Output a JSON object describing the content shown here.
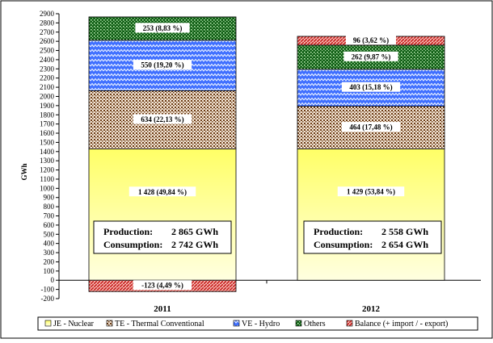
{
  "chart_data": {
    "type": "bar",
    "stacked": true,
    "ylabel": "GWh",
    "ylim": [
      -200,
      2900
    ],
    "ytick_step": 100,
    "grid": false,
    "legend_position": "bottom",
    "categories": [
      "2011",
      "2012"
    ],
    "series": [
      {
        "name": "JE - Nuclear",
        "values": [
          1428,
          1429
        ],
        "color": "#ffff99",
        "pattern": "solid-yellow",
        "labels": [
          "1 428 (49,84 %)",
          "1 429 (53,84 %)"
        ]
      },
      {
        "name": "TE - Thermal Conventional",
        "values": [
          634,
          464
        ],
        "color": "#8b5a2b",
        "pattern": "brown-dots",
        "labels": [
          "634 (22,13 %)",
          "464 (17,48 %)"
        ]
      },
      {
        "name": "VE - Hydro",
        "values": [
          550,
          403
        ],
        "color": "#3366ff",
        "pattern": "blue-zigzag",
        "labels": [
          "550 (19,20 %)",
          "403 (15,18 %)"
        ]
      },
      {
        "name": "Others",
        "values": [
          253,
          262
        ],
        "color": "#1a7a1a",
        "pattern": "green-dots",
        "labels": [
          "253 (8,83 %)",
          "262 (9,87 %)"
        ]
      },
      {
        "name": "Balance (+ import / - export)",
        "values": [
          -123,
          96
        ],
        "color": "#e05050",
        "pattern": "red-diagonal",
        "labels": [
          "-123 (4,49 %)",
          "96 (3,62 %)"
        ]
      }
    ],
    "summary_boxes": [
      {
        "production_label": "Production:",
        "production_value": "2 865 GWh",
        "consumption_label": "Consumption:",
        "consumption_value": "2 742 GWh"
      },
      {
        "production_label": "Production:",
        "production_value": "2 558 GWh",
        "consumption_label": "Consumption:",
        "consumption_value": "2 654 GWh"
      }
    ]
  }
}
